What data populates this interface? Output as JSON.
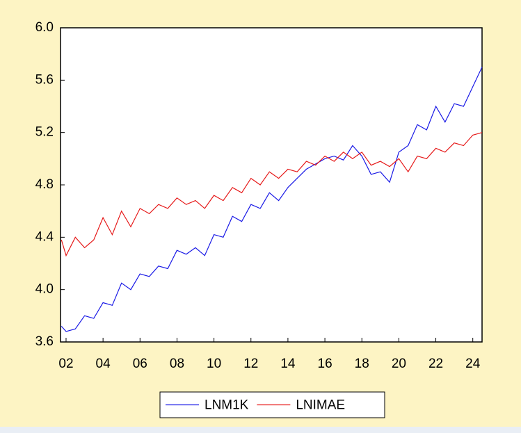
{
  "chart_data": {
    "type": "line",
    "x": [
      2001.75,
      2002,
      2002.5,
      2003,
      2003.5,
      2004,
      2004.5,
      2005,
      2005.5,
      2006,
      2006.5,
      2007,
      2007.5,
      2008,
      2008.5,
      2009,
      2009.5,
      2010,
      2010.5,
      2011,
      2011.5,
      2012,
      2012.5,
      2013,
      2013.5,
      2014,
      2014.5,
      2015,
      2015.5,
      2016,
      2016.5,
      2017,
      2017.5,
      2018,
      2018.5,
      2019,
      2019.5,
      2020,
      2020.5,
      2021,
      2021.5,
      2022,
      2022.5,
      2023,
      2023.5,
      2024,
      2024.5
    ],
    "series": [
      {
        "name": "LNM1K",
        "color": "#1a1ae6",
        "values": [
          3.72,
          3.68,
          3.7,
          3.8,
          3.78,
          3.9,
          3.88,
          4.05,
          4.0,
          4.12,
          4.1,
          4.18,
          4.16,
          4.3,
          4.27,
          4.32,
          4.26,
          4.42,
          4.4,
          4.56,
          4.52,
          4.65,
          4.62,
          4.74,
          4.68,
          4.78,
          4.85,
          4.92,
          4.96,
          5.0,
          5.02,
          4.99,
          5.1,
          5.02,
          4.88,
          4.9,
          4.82,
          5.05,
          5.1,
          5.26,
          5.22,
          5.4,
          5.28,
          5.42,
          5.4,
          5.55,
          5.7
        ]
      },
      {
        "name": "LNIMAE",
        "color": "#e61a1a",
        "values": [
          4.38,
          4.26,
          4.4,
          4.32,
          4.38,
          4.55,
          4.42,
          4.6,
          4.48,
          4.62,
          4.58,
          4.65,
          4.62,
          4.7,
          4.65,
          4.68,
          4.62,
          4.72,
          4.68,
          4.78,
          4.74,
          4.85,
          4.8,
          4.9,
          4.85,
          4.92,
          4.9,
          4.98,
          4.95,
          5.02,
          4.98,
          5.05,
          5.0,
          5.05,
          4.95,
          4.98,
          4.94,
          5.0,
          4.9,
          5.02,
          5.0,
          5.08,
          5.05,
          5.12,
          5.1,
          5.18,
          5.2
        ]
      }
    ],
    "xlim": [
      2001.7,
      2024.5
    ],
    "xticks": [
      {
        "value": 2002,
        "label": "02"
      },
      {
        "value": 2004,
        "label": "04"
      },
      {
        "value": 2006,
        "label": "06"
      },
      {
        "value": 2008,
        "label": "08"
      },
      {
        "value": 2010,
        "label": "10"
      },
      {
        "value": 2012,
        "label": "12"
      },
      {
        "value": 2014,
        "label": "14"
      },
      {
        "value": 2016,
        "label": "16"
      },
      {
        "value": 2018,
        "label": "18"
      },
      {
        "value": 2020,
        "label": "20"
      },
      {
        "value": 2022,
        "label": "22"
      },
      {
        "value": 2024,
        "label": "24"
      }
    ],
    "ylim": [
      3.6,
      6.0
    ],
    "yticks": [
      {
        "value": 3.6,
        "label": "3.6"
      },
      {
        "value": 4.0,
        "label": "4.0"
      },
      4.4,
      4.8,
      5.2,
      5.6,
      {
        "value": 6.0,
        "label": "6.0"
      }
    ],
    "legend": "bottom"
  }
}
